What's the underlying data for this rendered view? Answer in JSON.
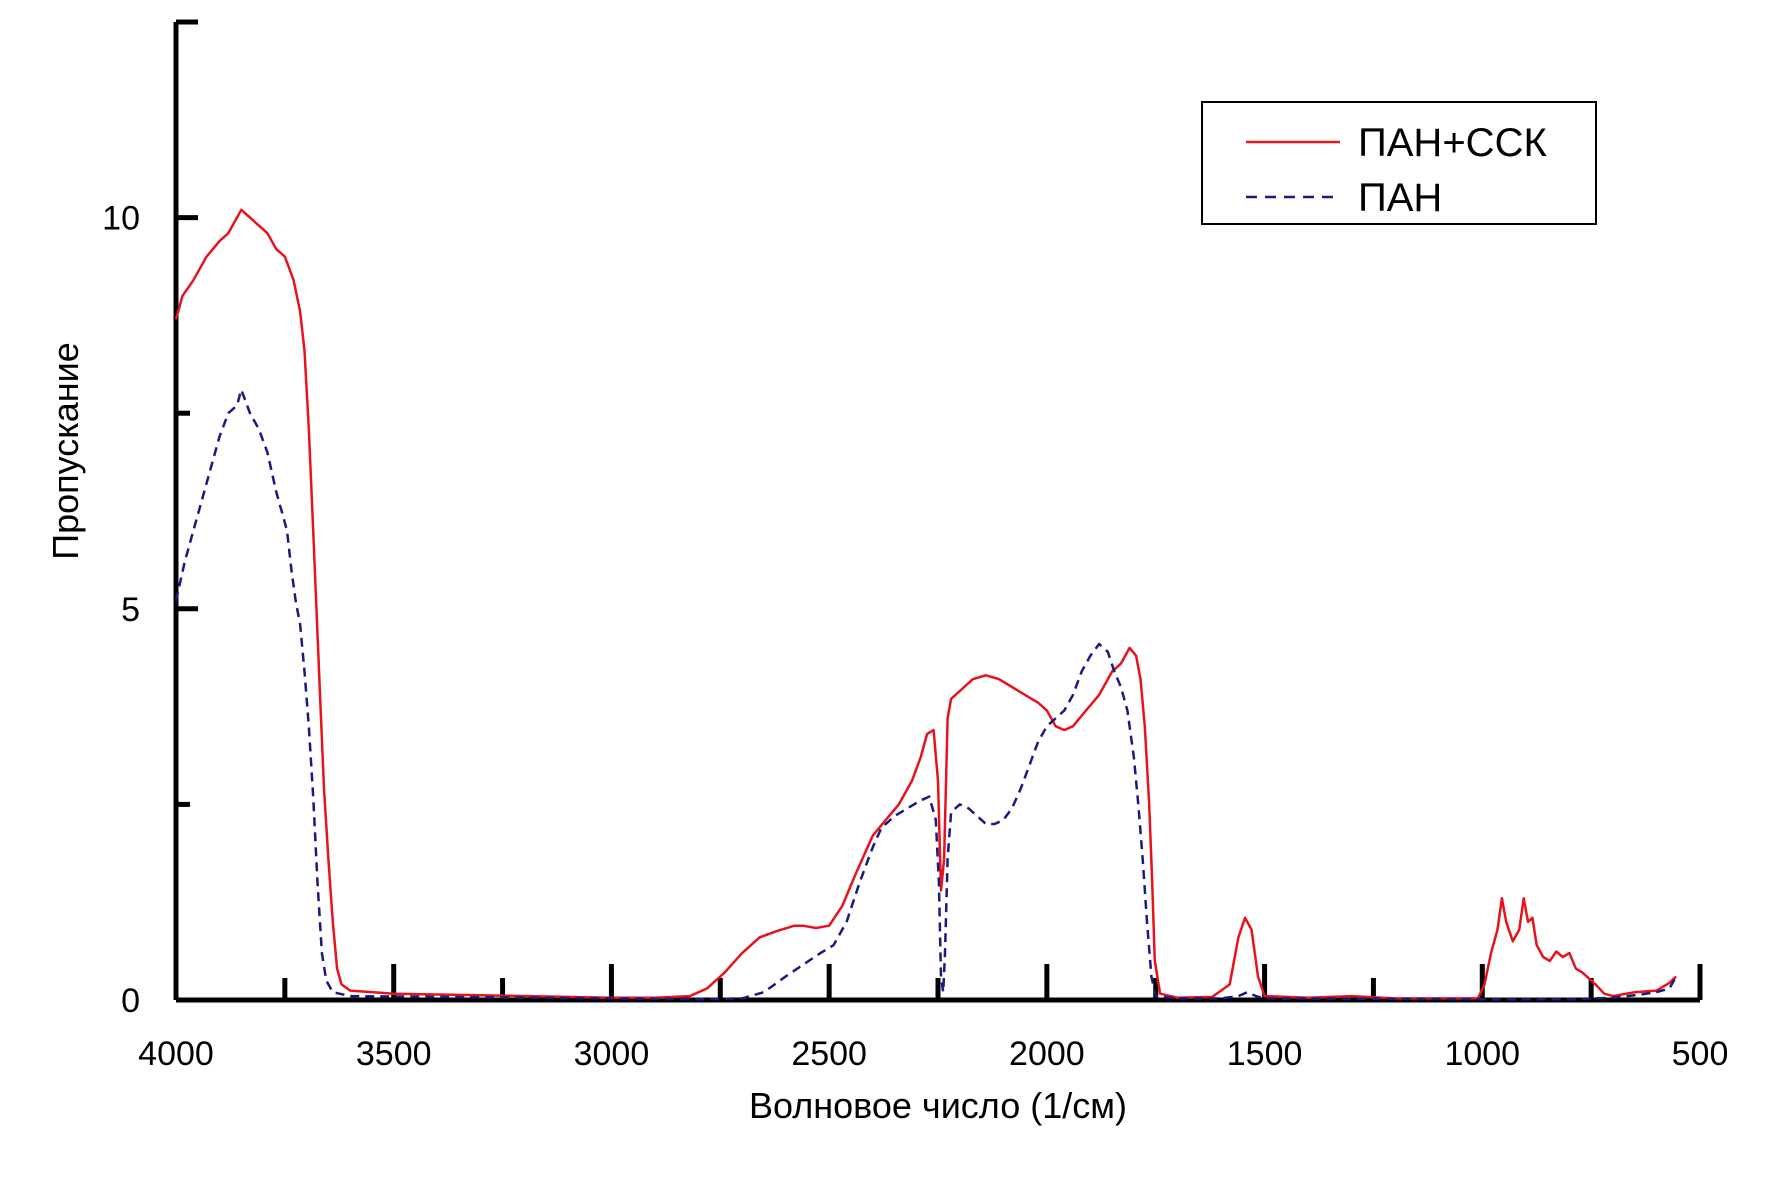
{
  "chart_data": {
    "type": "line",
    "xlabel": "Волновое число (1/см)",
    "ylabel": "Пропускание",
    "xlim": [
      4000,
      500
    ],
    "ylim": [
      0,
      12.5
    ],
    "x_reversed": true,
    "x_ticks": [
      4000,
      3500,
      3000,
      2500,
      2000,
      1500,
      1000,
      500
    ],
    "x_tick_labels": [
      "4000",
      "3500",
      "3000",
      "2500",
      "2000",
      "1500",
      "1000",
      "500"
    ],
    "x_minor_ticks": [
      3750,
      3250,
      2750,
      2250,
      1750,
      1250,
      750
    ],
    "y_ticks": [
      0,
      5,
      10
    ],
    "y_tick_labels": [
      "0",
      "5",
      "10"
    ],
    "y_minor_ticks": [
      2.5,
      7.5
    ],
    "grid": false,
    "legend_position": "top-right",
    "series": [
      {
        "name": "ПАН+ССК",
        "color": "#e8121c",
        "style": "solid",
        "points": [
          [
            4000,
            8.7
          ],
          [
            3985,
            9.0
          ],
          [
            3960,
            9.2
          ],
          [
            3930,
            9.5
          ],
          [
            3900,
            9.7
          ],
          [
            3880,
            9.8
          ],
          [
            3860,
            10.0
          ],
          [
            3850,
            10.1
          ],
          [
            3830,
            10.0
          ],
          [
            3810,
            9.9
          ],
          [
            3790,
            9.8
          ],
          [
            3770,
            9.6
          ],
          [
            3750,
            9.5
          ],
          [
            3730,
            9.2
          ],
          [
            3715,
            8.8
          ],
          [
            3705,
            8.3
          ],
          [
            3695,
            7.3
          ],
          [
            3685,
            6.0
          ],
          [
            3670,
            4.0
          ],
          [
            3660,
            2.7
          ],
          [
            3650,
            1.8
          ],
          [
            3640,
            1.0
          ],
          [
            3630,
            0.4
          ],
          [
            3620,
            0.2
          ],
          [
            3600,
            0.12
          ],
          [
            3500,
            0.08
          ],
          [
            3300,
            0.06
          ],
          [
            3000,
            0.03
          ],
          [
            2900,
            0.03
          ],
          [
            2820,
            0.05
          ],
          [
            2780,
            0.15
          ],
          [
            2740,
            0.35
          ],
          [
            2700,
            0.6
          ],
          [
            2660,
            0.8
          ],
          [
            2620,
            0.88
          ],
          [
            2580,
            0.95
          ],
          [
            2560,
            0.95
          ],
          [
            2530,
            0.92
          ],
          [
            2500,
            0.95
          ],
          [
            2470,
            1.2
          ],
          [
            2440,
            1.6
          ],
          [
            2400,
            2.1
          ],
          [
            2370,
            2.3
          ],
          [
            2340,
            2.5
          ],
          [
            2310,
            2.8
          ],
          [
            2290,
            3.1
          ],
          [
            2275,
            3.4
          ],
          [
            2260,
            3.45
          ],
          [
            2250,
            2.8
          ],
          [
            2243,
            1.4
          ],
          [
            2236,
            1.8
          ],
          [
            2228,
            3.6
          ],
          [
            2220,
            3.85
          ],
          [
            2200,
            3.95
          ],
          [
            2170,
            4.1
          ],
          [
            2140,
            4.15
          ],
          [
            2110,
            4.1
          ],
          [
            2080,
            4.0
          ],
          [
            2050,
            3.9
          ],
          [
            2020,
            3.8
          ],
          [
            2000,
            3.7
          ],
          [
            1980,
            3.5
          ],
          [
            1960,
            3.45
          ],
          [
            1940,
            3.5
          ],
          [
            1910,
            3.7
          ],
          [
            1880,
            3.9
          ],
          [
            1850,
            4.2
          ],
          [
            1830,
            4.3
          ],
          [
            1810,
            4.5
          ],
          [
            1795,
            4.4
          ],
          [
            1785,
            4.1
          ],
          [
            1775,
            3.5
          ],
          [
            1765,
            2.5
          ],
          [
            1758,
            1.5
          ],
          [
            1752,
            0.5
          ],
          [
            1740,
            0.08
          ],
          [
            1700,
            0.03
          ],
          [
            1620,
            0.04
          ],
          [
            1580,
            0.2
          ],
          [
            1560,
            0.8
          ],
          [
            1545,
            1.05
          ],
          [
            1530,
            0.9
          ],
          [
            1515,
            0.3
          ],
          [
            1500,
            0.05
          ],
          [
            1400,
            0.03
          ],
          [
            1300,
            0.05
          ],
          [
            1200,
            0.02
          ],
          [
            1100,
            0.02
          ],
          [
            1010,
            0.02
          ],
          [
            995,
            0.2
          ],
          [
            980,
            0.6
          ],
          [
            965,
            0.9
          ],
          [
            955,
            1.3
          ],
          [
            945,
            1.0
          ],
          [
            930,
            0.75
          ],
          [
            915,
            0.9
          ],
          [
            905,
            1.3
          ],
          [
            895,
            1.0
          ],
          [
            885,
            1.05
          ],
          [
            875,
            0.7
          ],
          [
            860,
            0.55
          ],
          [
            845,
            0.5
          ],
          [
            830,
            0.62
          ],
          [
            815,
            0.55
          ],
          [
            800,
            0.6
          ],
          [
            785,
            0.4
          ],
          [
            770,
            0.35
          ],
          [
            740,
            0.2
          ],
          [
            720,
            0.08
          ],
          [
            700,
            0.05
          ],
          [
            650,
            0.1
          ],
          [
            600,
            0.12
          ],
          [
            570,
            0.22
          ],
          [
            555,
            0.3
          ]
        ]
      },
      {
        "name": "ПАН",
        "color": "#1a1a80",
        "style": "dashed",
        "points": [
          [
            4000,
            5.1
          ],
          [
            3980,
            5.6
          ],
          [
            3960,
            6.0
          ],
          [
            3940,
            6.4
          ],
          [
            3920,
            6.8
          ],
          [
            3900,
            7.2
          ],
          [
            3880,
            7.5
          ],
          [
            3860,
            7.6
          ],
          [
            3850,
            7.8
          ],
          [
            3830,
            7.5
          ],
          [
            3810,
            7.3
          ],
          [
            3790,
            7.0
          ],
          [
            3770,
            6.5
          ],
          [
            3755,
            6.2
          ],
          [
            3745,
            6.0
          ],
          [
            3735,
            5.5
          ],
          [
            3725,
            5.1
          ],
          [
            3715,
            4.8
          ],
          [
            3705,
            4.2
          ],
          [
            3695,
            3.5
          ],
          [
            3685,
            2.6
          ],
          [
            3675,
            1.5
          ],
          [
            3665,
            0.6
          ],
          [
            3655,
            0.25
          ],
          [
            3640,
            0.1
          ],
          [
            3600,
            0.05
          ],
          [
            3400,
            0.04
          ],
          [
            3000,
            0.02
          ],
          [
            2800,
            0.01
          ],
          [
            2700,
            0.02
          ],
          [
            2650,
            0.1
          ],
          [
            2600,
            0.3
          ],
          [
            2560,
            0.45
          ],
          [
            2520,
            0.6
          ],
          [
            2490,
            0.7
          ],
          [
            2460,
            1.0
          ],
          [
            2430,
            1.5
          ],
          [
            2400,
            1.95
          ],
          [
            2380,
            2.2
          ],
          [
            2350,
            2.35
          ],
          [
            2320,
            2.45
          ],
          [
            2290,
            2.55
          ],
          [
            2270,
            2.6
          ],
          [
            2255,
            2.3
          ],
          [
            2248,
            1.5
          ],
          [
            2243,
            0.3
          ],
          [
            2238,
            0.1
          ],
          [
            2234,
            0.6
          ],
          [
            2228,
            1.8
          ],
          [
            2220,
            2.4
          ],
          [
            2200,
            2.5
          ],
          [
            2180,
            2.45
          ],
          [
            2160,
            2.35
          ],
          [
            2140,
            2.25
          ],
          [
            2120,
            2.25
          ],
          [
            2100,
            2.3
          ],
          [
            2080,
            2.45
          ],
          [
            2060,
            2.7
          ],
          [
            2040,
            3.0
          ],
          [
            2020,
            3.3
          ],
          [
            2000,
            3.5
          ],
          [
            1980,
            3.6
          ],
          [
            1960,
            3.7
          ],
          [
            1940,
            3.9
          ],
          [
            1920,
            4.2
          ],
          [
            1900,
            4.4
          ],
          [
            1880,
            4.55
          ],
          [
            1860,
            4.45
          ],
          [
            1845,
            4.2
          ],
          [
            1830,
            4.0
          ],
          [
            1815,
            3.7
          ],
          [
            1800,
            3.1
          ],
          [
            1790,
            2.5
          ],
          [
            1780,
            1.8
          ],
          [
            1770,
            1.0
          ],
          [
            1760,
            0.3
          ],
          [
            1750,
            0.05
          ],
          [
            1700,
            0.02
          ],
          [
            1600,
            0.02
          ],
          [
            1560,
            0.05
          ],
          [
            1540,
            0.1
          ],
          [
            1520,
            0.05
          ],
          [
            1500,
            0.02
          ],
          [
            1000,
            0.01
          ],
          [
            800,
            0.01
          ],
          [
            700,
            0.03
          ],
          [
            650,
            0.06
          ],
          [
            600,
            0.1
          ],
          [
            570,
            0.15
          ],
          [
            555,
            0.3
          ]
        ]
      }
    ]
  }
}
